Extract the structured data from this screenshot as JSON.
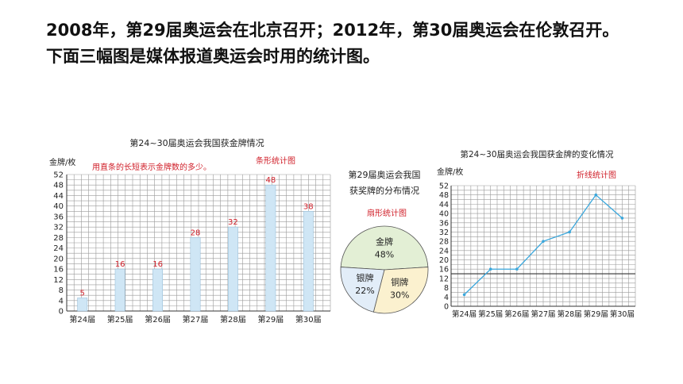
{
  "intro": {
    "line1": "2008年，第29届奥运会在北京召开；2012年，第30届奥运会在伦敦召开。",
    "line2": "下面三幅图是媒体报道奥运会时用的统计图。"
  },
  "chart_data": [
    {
      "type": "bar",
      "title": "第24~30届奥运会我国获金牌情况",
      "ylabel": "金牌/枚",
      "annotation": "用直条的长短表示金牌数的多少。",
      "tag": "条形统计图",
      "categories": [
        "第24届",
        "第25届",
        "第26届",
        "第27届",
        "第28届",
        "第29届",
        "第30届"
      ],
      "values": [
        5,
        16,
        16,
        28,
        32,
        48,
        38
      ],
      "yticks": [
        0,
        4,
        8,
        12,
        16,
        20,
        24,
        28,
        32,
        36,
        40,
        44,
        48,
        52
      ],
      "ylim": [
        0,
        52
      ],
      "bar_color": "#cfe6f5",
      "label_color": "#d0202a"
    },
    {
      "type": "pie",
      "title_line1": "第29届奥运会我国",
      "title_line2": "获奖牌的分布情况",
      "tag": "扇形统计图",
      "slices": [
        {
          "label": "金牌",
          "pct_label": "48%",
          "value": 48,
          "color": "#e3efd5"
        },
        {
          "label": "铜牌",
          "pct_label": "30%",
          "value": 30,
          "color": "#fbf1cf"
        },
        {
          "label": "银牌",
          "pct_label": "22%",
          "value": 22,
          "color": "#e2edf8"
        }
      ]
    },
    {
      "type": "line",
      "title": "第24~30届奥运会我国获金牌的变化情况",
      "ylabel": "金牌/枚",
      "tag": "折线统计图",
      "categories": [
        "第24届",
        "第25届",
        "第26届",
        "第27届",
        "第28届",
        "第29届",
        "第30届"
      ],
      "values": [
        5,
        16,
        16,
        28,
        32,
        48,
        38
      ],
      "yticks": [
        0,
        4,
        8,
        12,
        16,
        20,
        24,
        28,
        32,
        36,
        40,
        44,
        48,
        52
      ],
      "ylim": [
        0,
        52
      ],
      "reference_line": 14,
      "line_color": "#3aa7dc"
    }
  ]
}
